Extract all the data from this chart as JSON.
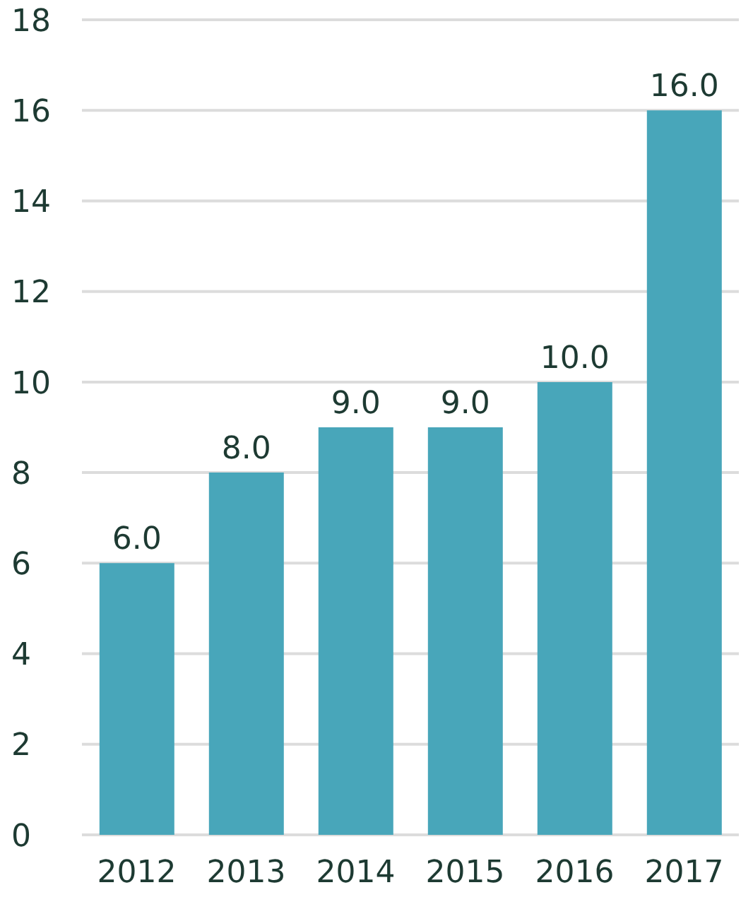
{
  "chart_data": {
    "type": "bar",
    "categories": [
      "2012",
      "2013",
      "2014",
      "2015",
      "2016",
      "2017"
    ],
    "values": [
      6,
      8,
      9,
      9,
      10,
      16
    ],
    "value_labels": [
      "6.0",
      "8.0",
      "9.0",
      "9.0",
      "10.0",
      "16.0"
    ],
    "color": "#48a6ba",
    "ylim": [
      0,
      18
    ],
    "yticks": [
      0,
      2,
      4,
      6,
      8,
      10,
      12,
      14,
      16,
      18
    ],
    "grid": "y"
  }
}
